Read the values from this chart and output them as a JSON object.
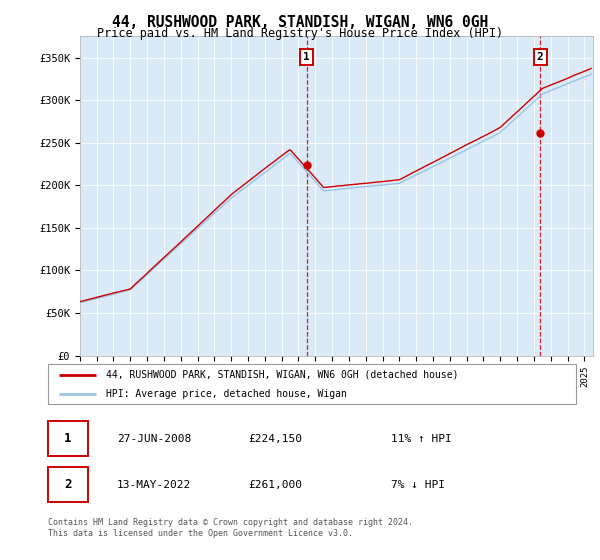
{
  "title": "44, RUSHWOOD PARK, STANDISH, WIGAN, WN6 0GH",
  "subtitle": "Price paid vs. HM Land Registry's House Price Index (HPI)",
  "ylabel_ticks": [
    "£0",
    "£50K",
    "£100K",
    "£150K",
    "£200K",
    "£250K",
    "£300K",
    "£350K"
  ],
  "ytick_vals": [
    0,
    50000,
    100000,
    150000,
    200000,
    250000,
    300000,
    350000
  ],
  "ylim": [
    0,
    375000
  ],
  "xlim_start": 1995.0,
  "xlim_end": 2025.5,
  "bg_color": "#daeaf7",
  "line1_color": "#cc0000",
  "line2_color": "#99c4e8",
  "sale1_x": 2008.49,
  "sale1_price": 224150,
  "sale2_x": 2022.37,
  "sale2_price": 261000,
  "legend_line1": "44, RUSHWOOD PARK, STANDISH, WIGAN, WN6 0GH (detached house)",
  "legend_line2": "HPI: Average price, detached house, Wigan",
  "footer_line1": "Contains HM Land Registry data © Crown copyright and database right 2024.",
  "footer_line2": "This data is licensed under the Open Government Licence v3.0.",
  "table_row1": [
    "1",
    "27-JUN-2008",
    "£224,150",
    "11% ↑ HPI"
  ],
  "table_row2": [
    "2",
    "13-MAY-2022",
    "£261,000",
    "7% ↓ HPI"
  ]
}
